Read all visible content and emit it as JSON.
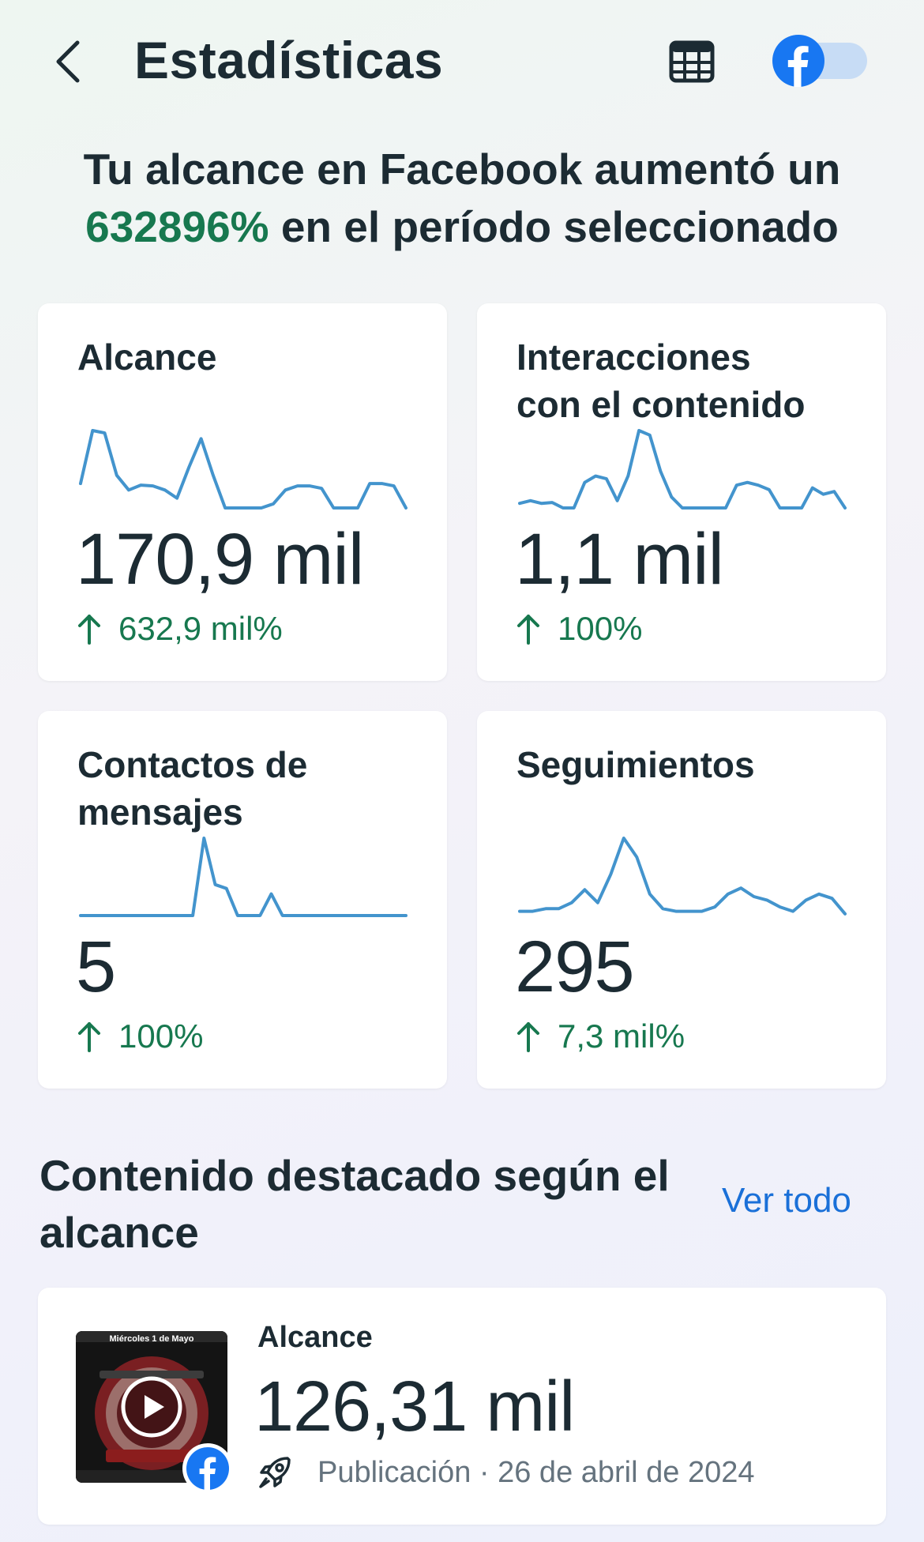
{
  "header": {
    "title": "Estadísticas",
    "back_icon": "chevron-left-icon",
    "calendar_icon": "calendar-icon",
    "platform_icon": "facebook-icon"
  },
  "summary": {
    "prefix": "Tu alcance en Facebook aumentó un",
    "highlight": "632896%",
    "suffix": "en el período seleccionado"
  },
  "metrics": [
    {
      "title_line1": "Alcance",
      "title_line2": "",
      "value": "170,9 mil",
      "change": "632,9 mil%",
      "trend": [
        30,
        95,
        92,
        40,
        22,
        28,
        27,
        22,
        12,
        50,
        85,
        40,
        0,
        0,
        0,
        0,
        5,
        22,
        27,
        27,
        24,
        0,
        0,
        0,
        30,
        30,
        27,
        0
      ]
    },
    {
      "title_line1": "Interacciones",
      "title_line2": "con el contenido",
      "value": "1,1 mil",
      "change": "100%",
      "trend": [
        5,
        8,
        5,
        6,
        0,
        0,
        28,
        35,
        32,
        8,
        35,
        85,
        80,
        40,
        12,
        0,
        0,
        0,
        0,
        0,
        25,
        28,
        25,
        20,
        0,
        0,
        0,
        22,
        15,
        18,
        0
      ]
    },
    {
      "title_line1": "Contactos de",
      "title_line2": "mensajes",
      "value": "5",
      "change": "100%",
      "trend": [
        0,
        0,
        0,
        0,
        0,
        0,
        0,
        0,
        0,
        0,
        0,
        100,
        40,
        35,
        0,
        0,
        0,
        28,
        0,
        0,
        0,
        0,
        0,
        0,
        0,
        0,
        0,
        0,
        0,
        0
      ]
    },
    {
      "title_line1": "Seguimientos",
      "title_line2": "",
      "value": "295",
      "change": "7,3 mil%",
      "trend": [
        5,
        5,
        8,
        8,
        15,
        30,
        15,
        48,
        90,
        68,
        25,
        8,
        5,
        5,
        5,
        10,
        25,
        32,
        22,
        18,
        10,
        5,
        18,
        25,
        20,
        2
      ]
    }
  ],
  "featured": {
    "title": "Contenido destacado según el alcance",
    "see_all": "Ver todo",
    "post": {
      "label": "Alcance",
      "value": "126,31 mil",
      "meta": "Publicación · 26 de abril de 2024",
      "thumbnail_text": "Miércoles 1 de Mayo",
      "type_icon": "rocket-icon",
      "play_icon": "play-icon",
      "badge_icon": "facebook-icon"
    }
  },
  "colors": {
    "text": "#1c2b33",
    "positive": "#17784f",
    "link": "#1a70d8",
    "sparkline": "#4394cd",
    "facebook_blue": "#1877f2",
    "toggle_track": "#c7dcf5"
  }
}
